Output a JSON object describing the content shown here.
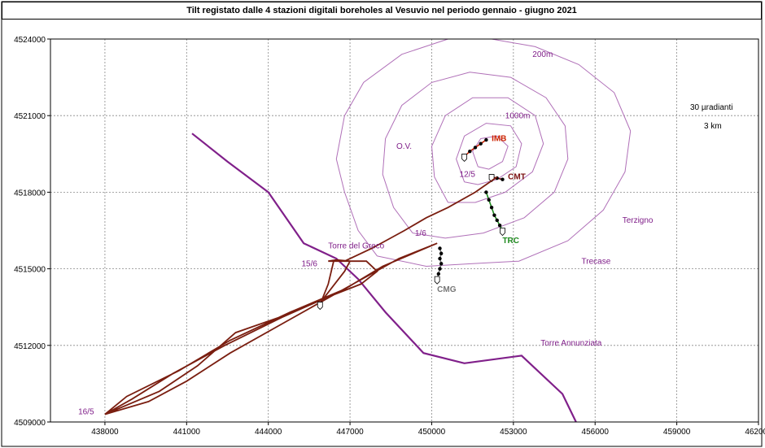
{
  "chart_data": {
    "type": "line",
    "title": "Tilt registato dalle 4 stazioni digitali boreholes al Vesuvio nel periodo gennaio - giugno 2021",
    "xlim": [
      436000,
      462000
    ],
    "ylim": [
      4509000,
      4524000
    ],
    "x_ticks": [
      438000,
      441000,
      444000,
      447000,
      450000,
      453000,
      456000,
      459000,
      462000
    ],
    "y_ticks": [
      4509000,
      4512000,
      4515000,
      4518000,
      4521000,
      4524000
    ],
    "x_tick_labels": [
      "438000",
      "441000",
      "444000",
      "447000",
      "450000",
      "453000",
      "456000",
      "459000",
      "462000"
    ],
    "y_tick_labels": [
      "4509000",
      "4512000",
      "4515000",
      "4518000",
      "4521000",
      "4524000"
    ],
    "grid": true,
    "scale_labels": [
      "30 µradianti",
      "3 km"
    ],
    "contour_labels": [
      {
        "text": "200m",
        "x": 453700,
        "y": 4523300
      },
      {
        "text": "1000m",
        "x": 452700,
        "y": 4520900
      }
    ],
    "place_labels": [
      {
        "text": "O.V.",
        "x": 448700,
        "y": 4519700
      },
      {
        "text": "Terzigno",
        "x": 457000,
        "y": 4516800
      },
      {
        "text": "Trecase",
        "x": 455500,
        "y": 4515200
      },
      {
        "text": "Torre del Greco",
        "x": 446200,
        "y": 4515800
      },
      {
        "text": "Torre Annunziata",
        "x": 454000,
        "y": 4512000
      }
    ],
    "coastline": [
      [
        441200,
        4520300
      ],
      [
        442500,
        4519200
      ],
      [
        444000,
        4518000
      ],
      [
        445300,
        4516000
      ],
      [
        446500,
        4515400
      ],
      [
        447300,
        4514600
      ],
      [
        448300,
        4513300
      ],
      [
        449700,
        4511700
      ],
      [
        451200,
        4511300
      ],
      [
        453300,
        4511600
      ],
      [
        454800,
        4510100
      ],
      [
        455300,
        4509000
      ]
    ],
    "contours": [
      [
        [
          448000,
          4515500
        ],
        [
          447300,
          4516500
        ],
        [
          446800,
          4518000
        ],
        [
          446500,
          4519300
        ],
        [
          446800,
          4521000
        ],
        [
          447500,
          4522300
        ],
        [
          448900,
          4523400
        ],
        [
          450600,
          4524000
        ],
        [
          452200,
          4524000
        ],
        [
          453800,
          4523700
        ],
        [
          455400,
          4523000
        ],
        [
          456700,
          4521900
        ],
        [
          457300,
          4520400
        ],
        [
          457100,
          4518800
        ],
        [
          456300,
          4517300
        ],
        [
          455000,
          4516100
        ],
        [
          453200,
          4515300
        ],
        [
          451500,
          4515200
        ],
        [
          449800,
          4515100
        ],
        [
          448000,
          4515500
        ]
      ],
      [
        [
          449300,
          4516400
        ],
        [
          448600,
          4517400
        ],
        [
          448200,
          4518700
        ],
        [
          448300,
          4520100
        ],
        [
          448900,
          4521400
        ],
        [
          450000,
          4522300
        ],
        [
          451400,
          4522700
        ],
        [
          452900,
          4522500
        ],
        [
          454200,
          4521700
        ],
        [
          454900,
          4520600
        ],
        [
          455000,
          4519300
        ],
        [
          454500,
          4518000
        ],
        [
          453400,
          4517000
        ],
        [
          451900,
          4516400
        ],
        [
          450500,
          4516200
        ],
        [
          449300,
          4516400
        ]
      ],
      [
        [
          450600,
          4517600
        ],
        [
          450100,
          4518600
        ],
        [
          450000,
          4519800
        ],
        [
          450500,
          4521000
        ],
        [
          451500,
          4521700
        ],
        [
          452800,
          4521700
        ],
        [
          453800,
          4521000
        ],
        [
          454100,
          4519900
        ],
        [
          453700,
          4518800
        ],
        [
          452700,
          4518000
        ],
        [
          451600,
          4517600
        ],
        [
          450600,
          4517600
        ]
      ],
      [
        [
          451200,
          4518400
        ],
        [
          450900,
          4519300
        ],
        [
          451200,
          4520200
        ],
        [
          452000,
          4520700
        ],
        [
          452900,
          4520600
        ],
        [
          453300,
          4519900
        ],
        [
          453100,
          4519000
        ],
        [
          452400,
          4518500
        ],
        [
          451700,
          4518300
        ],
        [
          451200,
          4518400
        ]
      ],
      [
        [
          451700,
          4519000
        ],
        [
          451500,
          4519600
        ],
        [
          451800,
          4520100
        ],
        [
          452400,
          4520200
        ],
        [
          452800,
          4519800
        ],
        [
          452600,
          4519200
        ],
        [
          452100,
          4518900
        ],
        [
          451700,
          4519000
        ]
      ]
    ],
    "series": [
      {
        "name": "IMB",
        "color": "#cc2200",
        "label_x": 452200,
        "label_y": 4520000,
        "x": [
          452000,
          451800,
          451600,
          451400,
          451200
        ],
        "y": [
          4520050,
          4519900,
          4519750,
          4519600,
          4519400
        ]
      },
      {
        "name": "CMT",
        "color": "#7a1010",
        "label_x": 452800,
        "label_y": 4518500,
        "x": [
          452600,
          452400,
          452200
        ],
        "y": [
          4518500,
          4518550,
          4518600
        ]
      },
      {
        "name": "TRC",
        "color": "#1e8a1e",
        "label_x": 452600,
        "label_y": 4516000,
        "x": [
          452000,
          452100,
          452200,
          452300,
          452400,
          452500,
          452600
        ],
        "y": [
          4518000,
          4517700,
          4517400,
          4517100,
          4516900,
          4516700,
          4516500
        ]
      },
      {
        "name": "CMG",
        "color": "#777777",
        "label_x": 450200,
        "label_y": 4514100,
        "x": [
          450300,
          450350,
          450300,
          450350,
          450300,
          450250,
          450200
        ],
        "y": [
          4515800,
          4515600,
          4515400,
          4515200,
          4515000,
          4514800,
          4514600
        ]
      },
      {
        "name": "",
        "color": "#7a1e10",
        "x": [
          452400,
          451600,
          450600,
          449800,
          449000,
          447800,
          446800,
          446200,
          446500,
          447000,
          446800,
          446000,
          444400,
          442800,
          441400,
          440000,
          438000,
          439600,
          441000,
          442600,
          444600,
          446600,
          448800,
          450200,
          448200,
          446800,
          444800,
          442600,
          440700,
          438800,
          438000,
          439000,
          440500,
          442400,
          444500,
          446200,
          447400,
          448000,
          447600,
          446400,
          446200,
          445900
        ],
        "y": [
          4518600,
          4518000,
          4517400,
          4517000,
          4516500,
          4515800,
          4515300,
          4515300,
          4515350,
          4515300,
          4514900,
          4513800,
          4513100,
          4512500,
          4511200,
          4510200,
          4509300,
          4509800,
          4510600,
          4511700,
          4512900,
          4514100,
          4515400,
          4516000,
          4515100,
          4514200,
          4513300,
          4512200,
          4511000,
          4510000,
          4509300,
          4509900,
          4510900,
          4512000,
          4513100,
          4513900,
          4514400,
          4514900,
          4515300,
          4515300,
          4514400,
          4513600
        ]
      }
    ],
    "date_labels": [
      {
        "text": "12/5",
        "x": 451600,
        "y": 4518600
      },
      {
        "text": "1/6",
        "x": 449800,
        "y": 4516300
      },
      {
        "text": "15/6",
        "x": 445800,
        "y": 4515100
      },
      {
        "text": "16/5",
        "x": 437600,
        "y": 4509300
      }
    ]
  }
}
